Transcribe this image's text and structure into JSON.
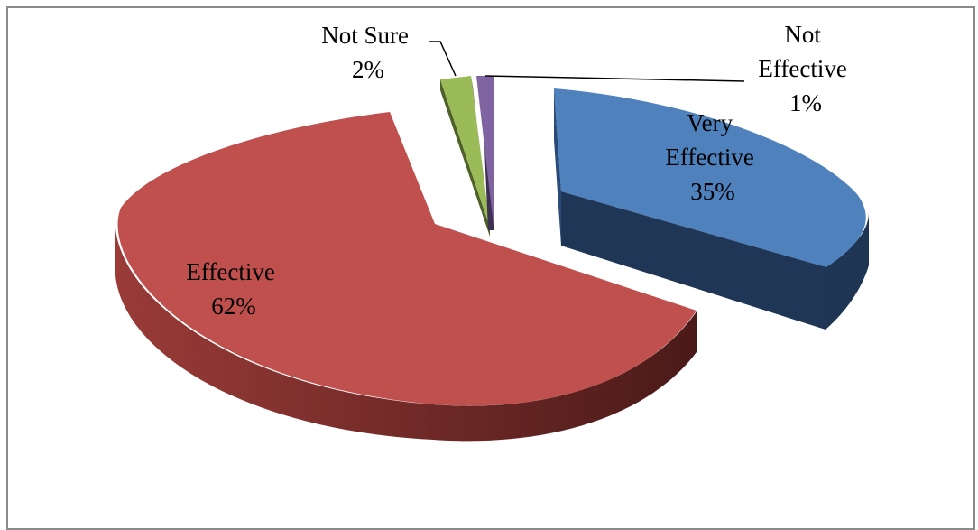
{
  "chart_data": {
    "type": "pie",
    "style": "3d-exploded",
    "slices": [
      {
        "name": "Very Effective",
        "value": 35,
        "label_lines": [
          "Very",
          "Effective",
          "35%"
        ],
        "color": "#4f81bd"
      },
      {
        "name": "Effective",
        "value": 62,
        "label_lines": [
          "Effective",
          "62%"
        ],
        "color": "#c0504d"
      },
      {
        "name": "Not Sure",
        "value": 2,
        "label_lines": [
          "Not Sure",
          "2%"
        ],
        "color": "#9bbb59"
      },
      {
        "name": "Not Effective",
        "value": 1,
        "label_lines": [
          "Not",
          "Effective",
          "1%"
        ],
        "color": "#8064a2"
      }
    ],
    "legend": "none"
  }
}
